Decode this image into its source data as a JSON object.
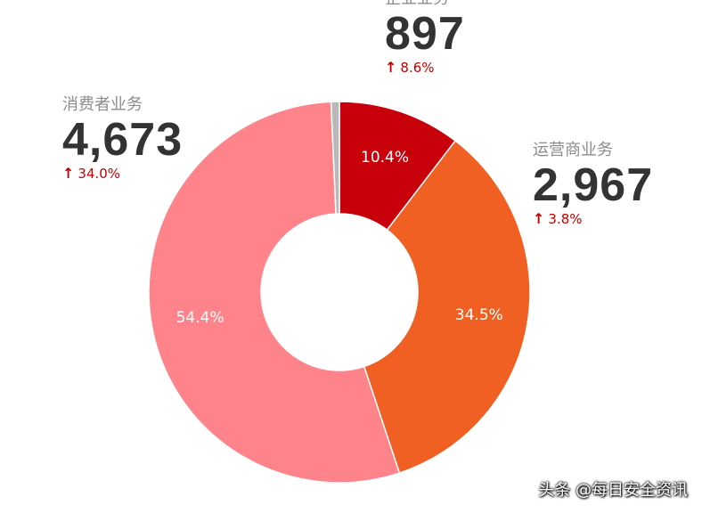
{
  "chart_data": {
    "type": "pie",
    "donut": true,
    "categories": [
      "企业业务",
      "运营商业务",
      "消费者业务",
      ""
    ],
    "values": [
      10.4,
      34.5,
      54.4,
      0.7
    ],
    "labels": [
      "10.4%",
      "34.5%",
      "54.4%",
      ""
    ],
    "colors": [
      "#c8000b",
      "#ef6022",
      "#ff838b",
      "#b8b8b8"
    ]
  },
  "callouts": {
    "consumer": {
      "name": "消费者业务",
      "value": "4,673",
      "arrow": "↑",
      "change": "34.0%"
    },
    "enterprise": {
      "name": "企业业务",
      "value": "897",
      "arrow": "↑",
      "change": "8.6%"
    },
    "carrier": {
      "name": "运营商业务",
      "value": "2,967",
      "arrow": "↑",
      "change": "3.8%"
    }
  },
  "watermark": "头条 @每日安全资讯"
}
